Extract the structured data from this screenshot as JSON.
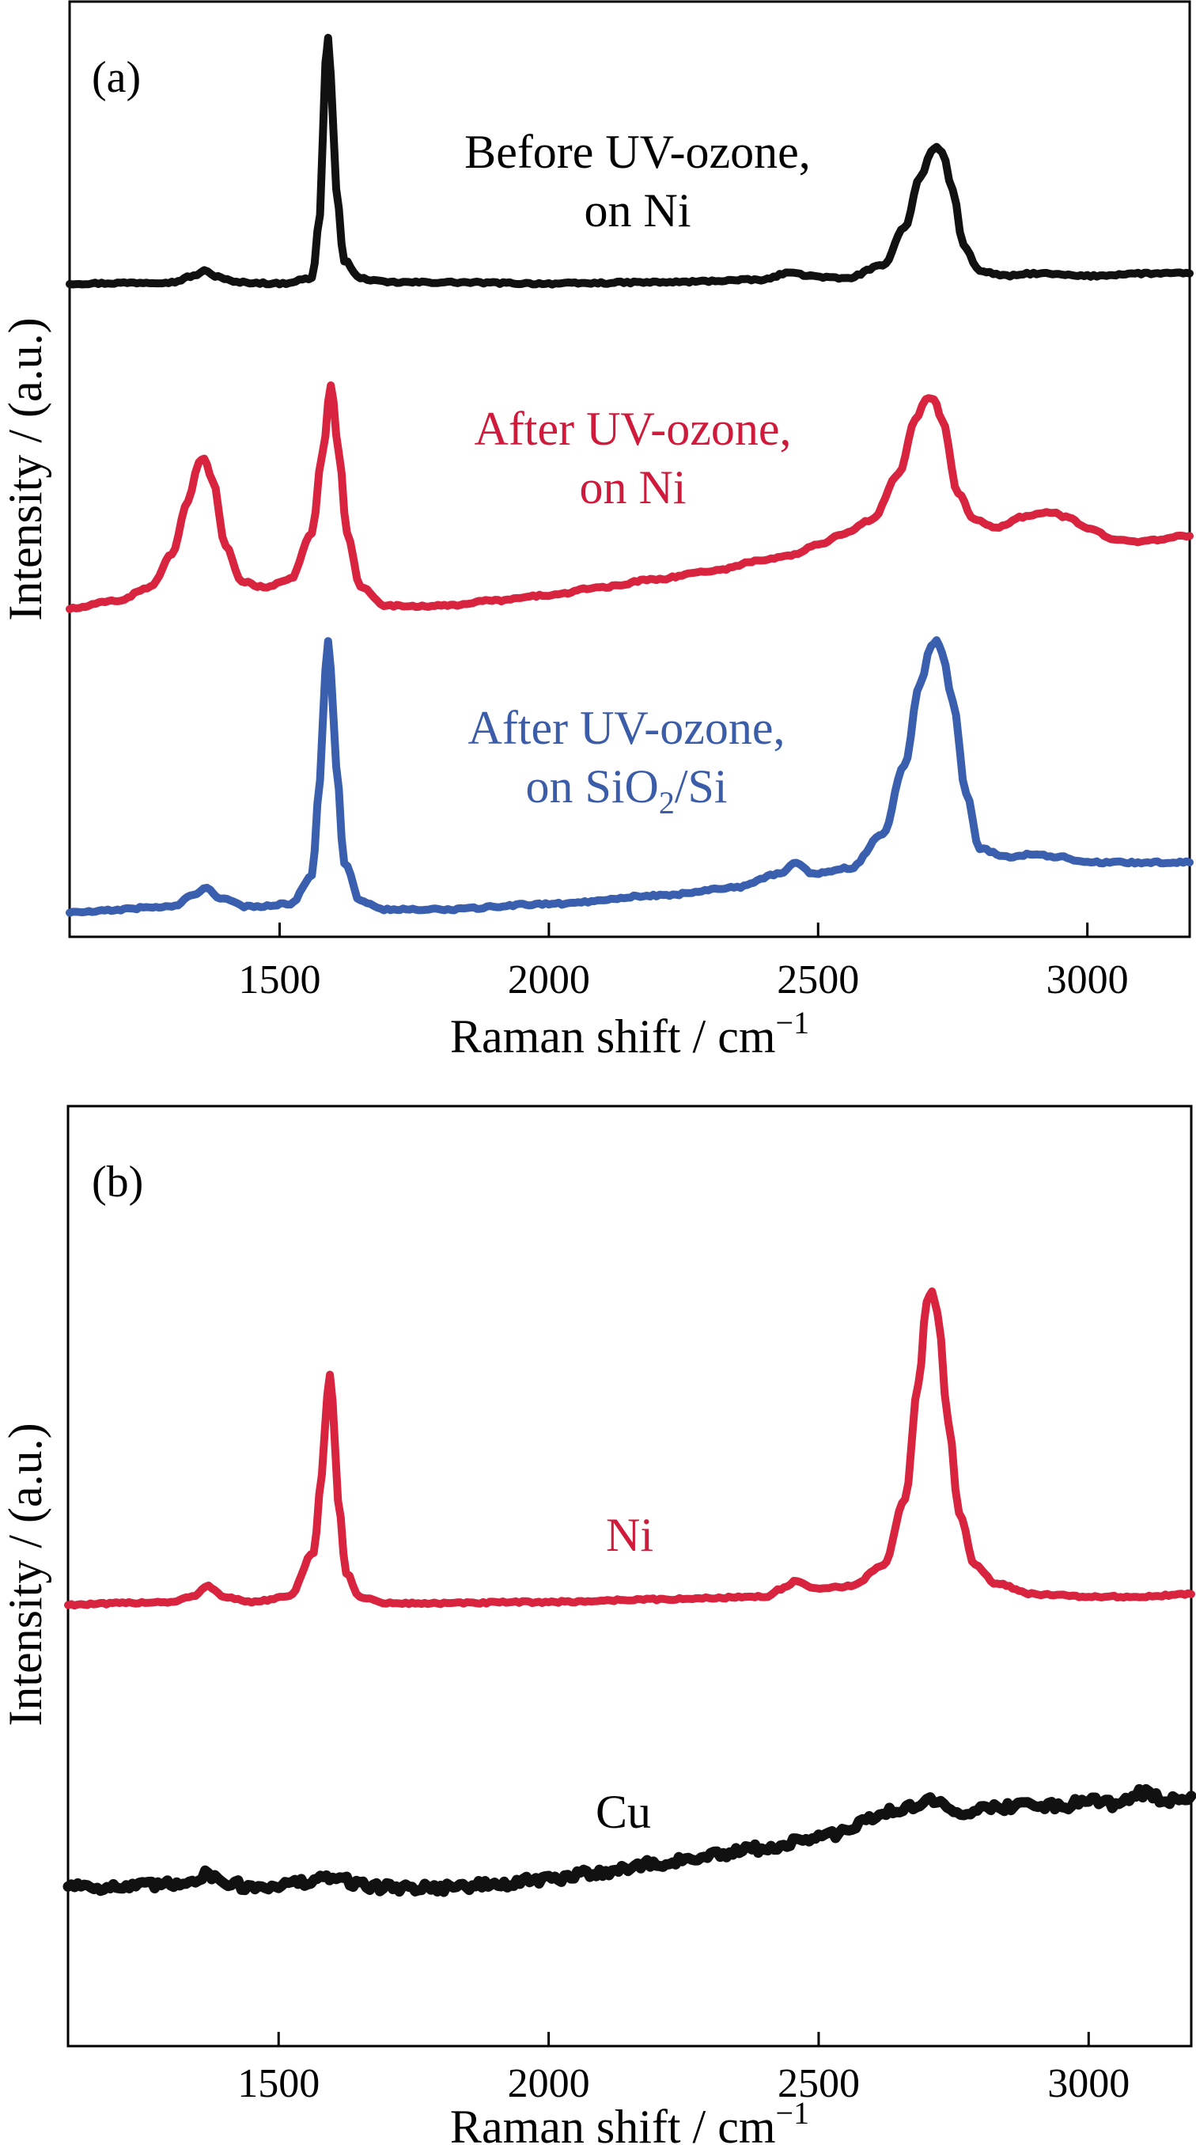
{
  "chart_data": [
    {
      "type": "line",
      "panel_label": "(a)",
      "xlabel": "Raman shift / cm",
      "xlabel_superscript": "−1",
      "ylabel": "Intensity / (a.u.)",
      "xlim": [
        1110,
        3190
      ],
      "xticks": [
        1500,
        2000,
        2500,
        3000
      ],
      "yticks": "none",
      "grid": false,
      "series": [
        {
          "name_lines": [
            "Before UV-ozone,",
            "on Ni"
          ],
          "color": "#111111",
          "label_color": "#000000",
          "x": [
            1110,
            1300,
            1340,
            1360,
            1380,
            1420,
            1500,
            1560,
            1575,
            1585,
            1590,
            1595,
            1605,
            1620,
            1650,
            1700,
            1800,
            2000,
            2200,
            2400,
            2440,
            2460,
            2480,
            2550,
            2620,
            2660,
            2690,
            2710,
            2720,
            2730,
            2750,
            2770,
            2800,
            2850,
            2900,
            3000,
            3100,
            3190
          ],
          "y": [
            0.03,
            0.035,
            0.06,
            0.08,
            0.06,
            0.035,
            0.03,
            0.05,
            0.3,
            0.9,
            1.0,
            0.85,
            0.4,
            0.12,
            0.05,
            0.035,
            0.035,
            0.03,
            0.035,
            0.045,
            0.07,
            0.075,
            0.06,
            0.05,
            0.1,
            0.25,
            0.45,
            0.55,
            0.57,
            0.55,
            0.4,
            0.18,
            0.08,
            0.06,
            0.07,
            0.06,
            0.07,
            0.07
          ]
        },
        {
          "name_lines": [
            "After UV-ozone,",
            "on Ni"
          ],
          "color": "#d8243e",
          "label_color": "#d01a3c",
          "x": [
            1110,
            1200,
            1260,
            1300,
            1330,
            1350,
            1360,
            1375,
            1400,
            1430,
            1470,
            1520,
            1560,
            1580,
            1595,
            1610,
            1625,
            1650,
            1700,
            1800,
            1900,
            2000,
            2100,
            2200,
            2300,
            2400,
            2450,
            2500,
            2550,
            2600,
            2650,
            2680,
            2700,
            2715,
            2730,
            2760,
            2790,
            2830,
            2880,
            2930,
            2960,
            3000,
            3050,
            3100,
            3190
          ],
          "y": [
            0.02,
            0.05,
            0.1,
            0.22,
            0.42,
            0.56,
            0.58,
            0.5,
            0.25,
            0.12,
            0.1,
            0.13,
            0.3,
            0.6,
            0.85,
            0.6,
            0.3,
            0.1,
            0.03,
            0.03,
            0.05,
            0.07,
            0.1,
            0.13,
            0.16,
            0.2,
            0.22,
            0.26,
            0.3,
            0.35,
            0.52,
            0.72,
            0.8,
            0.8,
            0.72,
            0.45,
            0.35,
            0.32,
            0.36,
            0.38,
            0.36,
            0.32,
            0.28,
            0.27,
            0.29
          ]
        },
        {
          "name_lines": [
            "After UV-ozone,",
            "on SiO2/Si"
          ],
          "name_html_parts": [
            "on SiO",
            "2",
            "/Si"
          ],
          "color": "#3a5fae",
          "label_color": "#3b5ca8",
          "x": [
            1110,
            1300,
            1340,
            1365,
            1390,
            1440,
            1520,
            1560,
            1575,
            1585,
            1590,
            1595,
            1605,
            1620,
            1650,
            1700,
            1800,
            2000,
            2200,
            2350,
            2430,
            2460,
            2490,
            2560,
            2620,
            2660,
            2690,
            2710,
            2720,
            2730,
            2750,
            2775,
            2800,
            2850,
            2900,
            2950,
            3000,
            3100,
            3190
          ],
          "y": [
            0.02,
            0.04,
            0.08,
            0.11,
            0.07,
            0.04,
            0.05,
            0.15,
            0.5,
            0.9,
            1.0,
            0.9,
            0.55,
            0.2,
            0.06,
            0.03,
            0.03,
            0.05,
            0.08,
            0.11,
            0.16,
            0.2,
            0.16,
            0.18,
            0.3,
            0.55,
            0.85,
            0.98,
            1.0,
            0.96,
            0.78,
            0.45,
            0.25,
            0.22,
            0.23,
            0.22,
            0.2,
            0.2,
            0.2
          ]
        }
      ]
    },
    {
      "type": "line",
      "panel_label": "(b)",
      "xlabel": "Raman shift / cm",
      "xlabel_superscript": "−1",
      "ylabel": "Intensity / (a.u.)",
      "xlim": [
        1110,
        3190
      ],
      "xticks": [
        1500,
        2000,
        2500,
        3000
      ],
      "yticks": "none",
      "grid": false,
      "series": [
        {
          "name_lines": [
            "Ni"
          ],
          "color": "#d8243e",
          "label_color": "#d01a3c",
          "x": [
            1110,
            1300,
            1340,
            1370,
            1400,
            1450,
            1520,
            1565,
            1580,
            1590,
            1595,
            1600,
            1610,
            1625,
            1650,
            1700,
            1800,
            2000,
            2200,
            2400,
            2430,
            2460,
            2490,
            2560,
            2620,
            2660,
            2685,
            2700,
            2710,
            2720,
            2740,
            2760,
            2790,
            2830,
            2900,
            3000,
            3100,
            3190
          ],
          "y": [
            0.0,
            0.01,
            0.03,
            0.07,
            0.03,
            0.01,
            0.03,
            0.2,
            0.5,
            0.8,
            0.88,
            0.78,
            0.4,
            0.12,
            0.03,
            0.005,
            0.005,
            0.01,
            0.02,
            0.03,
            0.06,
            0.09,
            0.06,
            0.07,
            0.15,
            0.4,
            0.85,
            1.16,
            1.2,
            1.12,
            0.7,
            0.35,
            0.15,
            0.08,
            0.04,
            0.03,
            0.03,
            0.04
          ]
        },
        {
          "name_lines": [
            "Cu"
          ],
          "color": "#111111",
          "label_color": "#000000",
          "x": [
            1110,
            1200,
            1300,
            1340,
            1370,
            1400,
            1450,
            1500,
            1560,
            1600,
            1620,
            1650,
            1700,
            1800,
            1900,
            2000,
            2100,
            2200,
            2300,
            2400,
            2500,
            2550,
            2600,
            2650,
            2700,
            2720,
            2750,
            2800,
            2850,
            2900,
            2950,
            3000,
            3050,
            3100,
            3150,
            3190
          ],
          "y": [
            0.0,
            -0.01,
            0.0,
            0.02,
            0.04,
            0.01,
            -0.01,
            0.0,
            0.01,
            0.03,
            0.02,
            0.0,
            -0.01,
            -0.01,
            0.0,
            0.02,
            0.05,
            0.08,
            0.11,
            0.14,
            0.18,
            0.2,
            0.26,
            0.29,
            0.32,
            0.31,
            0.28,
            0.29,
            0.3,
            0.31,
            0.3,
            0.33,
            0.31,
            0.35,
            0.32,
            0.34
          ]
        }
      ]
    }
  ]
}
